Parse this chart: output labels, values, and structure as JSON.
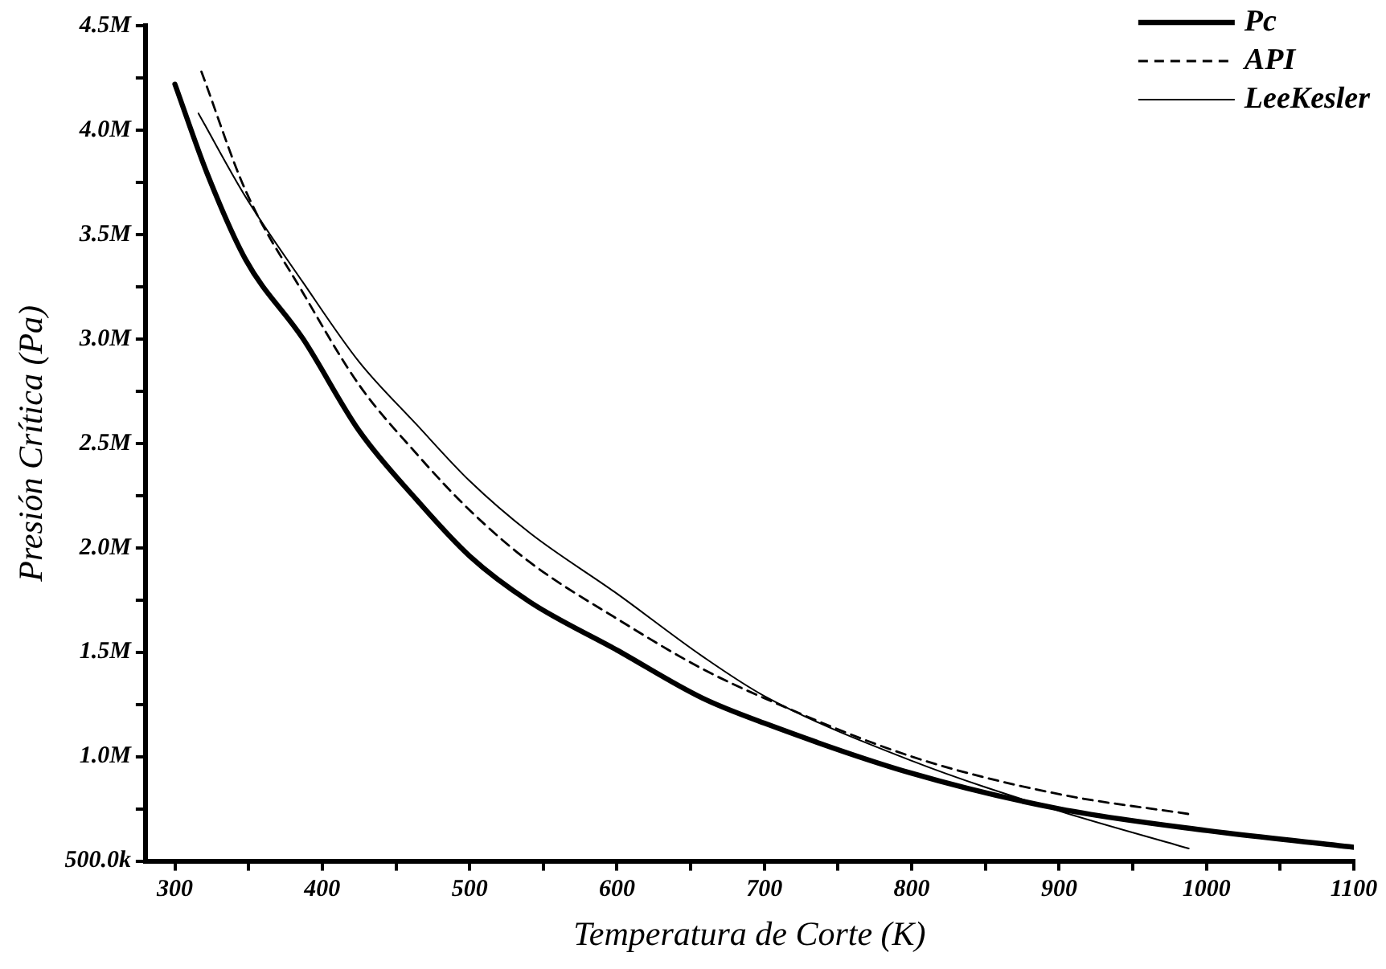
{
  "chart_data": {
    "type": "line",
    "xlabel": "Temperatura de Corte (K)",
    "ylabel": "Presión Crítica (Pa)",
    "xlim": [
      280,
      1100
    ],
    "xticks": [
      300,
      {
        "value": 350,
        "label": null
      },
      400,
      {
        "value": 450,
        "label": null
      },
      500,
      {
        "value": 550,
        "label": null
      },
      600,
      {
        "value": 650,
        "label": null
      },
      700,
      {
        "value": 750,
        "label": null
      },
      800,
      {
        "value": 850,
        "label": null
      },
      900,
      {
        "value": 950,
        "label": null
      },
      1000,
      {
        "value": 1050,
        "label": null
      },
      1100
    ],
    "ylim": [
      500000,
      4500000
    ],
    "yticks": [
      {
        "value": 500000,
        "label": "500.0k"
      },
      {
        "value": 750000,
        "label": null
      },
      {
        "value": 1000000,
        "label": "1.0M"
      },
      {
        "value": 1250000,
        "label": null
      },
      {
        "value": 1500000,
        "label": "1.5M"
      },
      {
        "value": 1750000,
        "label": null
      },
      {
        "value": 2000000,
        "label": "2.0M"
      },
      {
        "value": 2250000,
        "label": null
      },
      {
        "value": 2500000,
        "label": "2.5M"
      },
      {
        "value": 2750000,
        "label": null
      },
      {
        "value": 3000000,
        "label": "3.0M"
      },
      {
        "value": 3250000,
        "label": null
      },
      {
        "value": 3500000,
        "label": "3.5M"
      },
      {
        "value": 3750000,
        "label": null
      },
      {
        "value": 4000000,
        "label": "4.0M"
      },
      {
        "value": 4250000,
        "label": null
      },
      {
        "value": 4500000,
        "label": "4.5M"
      }
    ],
    "grid": false,
    "legend": "top right",
    "marker": "none",
    "series": [
      {
        "name": "Pc",
        "color": "#000000",
        "line_style": "solid",
        "x": [
          300,
          322,
          348,
          387,
          425,
          464,
          500,
          541,
          600,
          658,
          700,
          800,
          900,
          1000,
          1100
        ],
        "values": [
          4220000,
          3790000,
          3380000,
          3000000,
          2560000,
          2230000,
          1960000,
          1740000,
          1510000,
          1280000,
          1160000,
          920000,
          750000,
          646000,
          566000
        ]
      },
      {
        "name": "API",
        "color": "#000000",
        "line_style": "dashed",
        "x": [
          318,
          348,
          387,
          425,
          464,
          500,
          541,
          600,
          658,
          700,
          800,
          900,
          988
        ],
        "values": [
          4280000,
          3710000,
          3220000,
          2780000,
          2450000,
          2180000,
          1930000,
          1660000,
          1420000,
          1280000,
          1000000,
          820000,
          725000
        ]
      },
      {
        "name": "LeeKesler",
        "color": "#000000",
        "line_style": "solid",
        "x": [
          316,
          348,
          387,
          425,
          464,
          500,
          541,
          600,
          658,
          700,
          800,
          900,
          988
        ],
        "values": [
          4080000,
          3680000,
          3270000,
          2890000,
          2590000,
          2320000,
          2070000,
          1780000,
          1480000,
          1290000,
          980000,
          740000,
          560000
        ]
      }
    ]
  }
}
